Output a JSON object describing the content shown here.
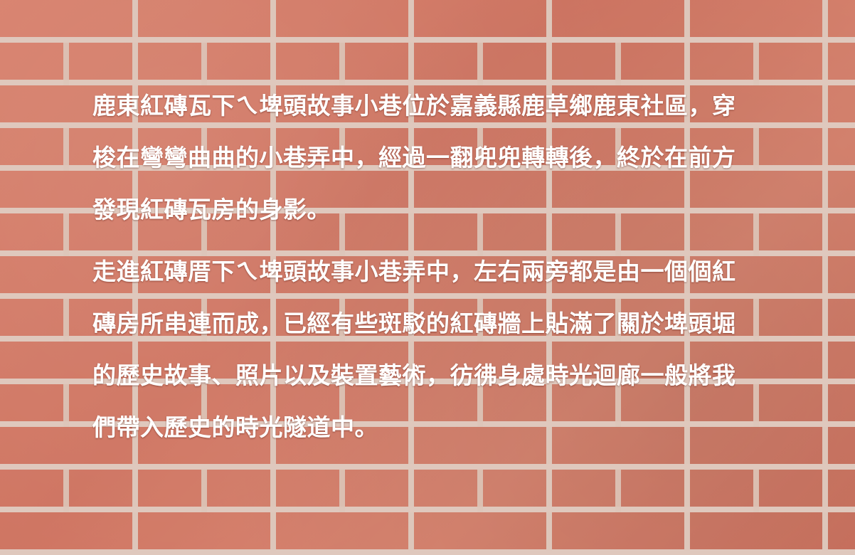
{
  "article": {
    "paragraphs": [
      "鹿東紅磚瓦下ㄟ埤頭故事小巷位於嘉義縣鹿草鄉鹿東社區，穿梭在彎彎曲曲的小巷弄中，經過一翻兜兜轉轉後，終於在前方發現紅磚瓦房的身影。",
      "走進紅磚厝下ㄟ埤頭故事小巷弄中，左右兩旁都是由一個個紅磚房所串連而成，已經有些斑駁的紅磚牆上貼滿了關於埤頭堀的歷史故事、照片以及裝置藝術，彷彿身處時光迴廊一般將我們帶入歷史的時光隧道中。"
    ]
  }
}
